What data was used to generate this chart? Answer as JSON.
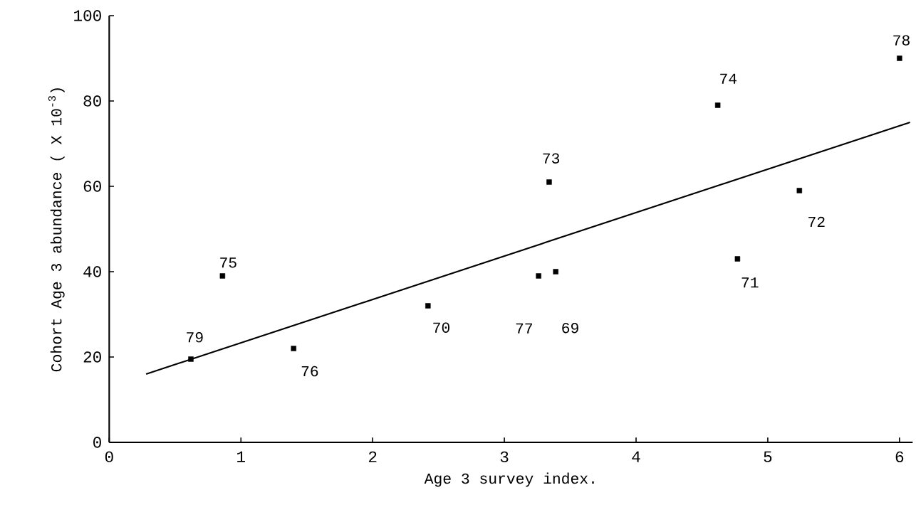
{
  "chart_data": {
    "type": "scatter",
    "xlabel": "Age 3 survey index.",
    "ylabel": "Cohort Age 3 abundance ( X 10$^{-3}$)",
    "xlim": [
      0,
      6.1
    ],
    "ylim": [
      0,
      100
    ],
    "xticks": [
      0,
      1,
      2,
      3,
      4,
      5,
      6
    ],
    "yticks": [
      0,
      20,
      40,
      60,
      80,
      100
    ],
    "grid": false,
    "marker": "square",
    "series": [
      {
        "color": "#000000",
        "x": [
          3.39,
          2.42,
          4.77,
          5.24,
          3.34,
          4.62,
          0.86,
          1.4,
          3.26,
          6.0,
          0.62
        ],
        "values": [
          40,
          32,
          43,
          59,
          61,
          79,
          39,
          22,
          39,
          90,
          19.5
        ]
      },
      {
        "type": "line",
        "color": "#000000",
        "marker": "none",
        "x": [
          0.28,
          6.08
        ],
        "values": [
          16,
          75
        ]
      }
    ],
    "annotations": [
      "69",
      {
        "text": "70",
        "x": 2.42,
        "y": 32
      },
      {
        "text": "71",
        "x": 4.77,
        "y": 43
      },
      {
        "text": "72",
        "x": 5.24,
        "y": 59
      },
      {
        "text": "73",
        "x": 3.34,
        "y": 61
      },
      {
        "text": "74",
        "x": 4.62,
        "y": 79
      },
      {
        "text": "75",
        "x": 0.86,
        "y": 39
      },
      {
        "text": "76",
        "x": 1.4,
        "y": 22
      },
      "77",
      {
        "text": "78",
        "x": 6.0,
        "y": 90
      },
      {
        "text": "79",
        "x": 0.62,
        "y": 19.5
      }
    ]
  }
}
